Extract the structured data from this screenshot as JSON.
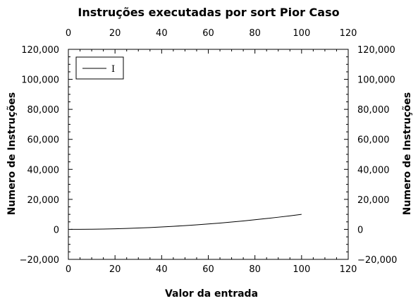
{
  "chart_data": {
    "type": "line",
    "title": "Instruções executadas por sort Pior Caso",
    "xlabel": "Valor da entrada",
    "ylabel": "Numero de Instruções",
    "xlim": [
      0,
      120
    ],
    "ylim": [
      -20000,
      120000
    ],
    "x_ticks": [
      0,
      20,
      40,
      60,
      80,
      100,
      120
    ],
    "y_ticks": [
      -20000,
      0,
      20000,
      40000,
      60000,
      80000,
      100000,
      120000
    ],
    "x_tick_labels": [
      "0",
      "20",
      "40",
      "60",
      "80",
      "100",
      "120"
    ],
    "y_tick_labels": [
      "−20,000",
      "0",
      "20,000",
      "40,000",
      "60,000",
      "80,000",
      "100,000",
      "120,000"
    ],
    "grid": false,
    "legend_position": "top-left",
    "series": [
      {
        "name": "I",
        "color": "#000000",
        "x": [
          1,
          5,
          10,
          15,
          20,
          25,
          30,
          35,
          40,
          45,
          50,
          55,
          60,
          65,
          70,
          75,
          80,
          85,
          90,
          95,
          100
        ],
        "y": [
          1,
          25,
          100,
          225,
          400,
          625,
          900,
          1225,
          1600,
          2025,
          2500,
          3025,
          3600,
          4225,
          4900,
          5625,
          6400,
          7225,
          8100,
          9025,
          10000
        ]
      }
    ]
  }
}
